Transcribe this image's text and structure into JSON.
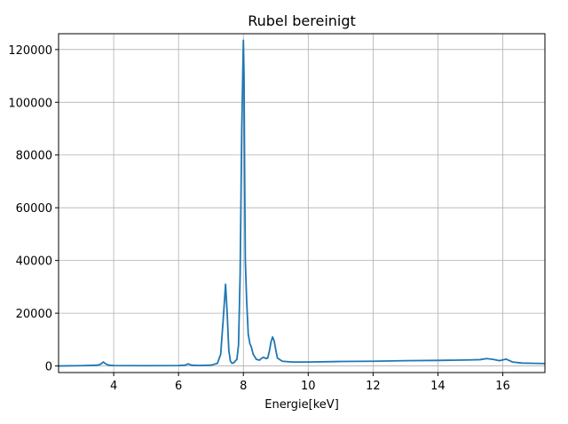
{
  "chart_data": {
    "type": "line",
    "title": "Rubel bereinigt",
    "xlabel": "Energie[keV]",
    "ylabel": "",
    "xlim": [
      2.3,
      17.3
    ],
    "ylim": [
      -2500,
      126000
    ],
    "xticks": [
      4,
      6,
      8,
      10,
      12,
      14,
      16
    ],
    "yticks": [
      0,
      20000,
      40000,
      60000,
      80000,
      100000,
      120000
    ],
    "grid": true,
    "colors": {
      "line": "#1f77b4",
      "grid": "#b0b0b0"
    },
    "series": [
      {
        "name": "",
        "x": [
          2.3,
          3.0,
          3.5,
          3.6,
          3.68,
          3.75,
          3.85,
          4.0,
          5.0,
          6.0,
          6.2,
          6.3,
          6.4,
          6.6,
          7.0,
          7.2,
          7.3,
          7.38,
          7.45,
          7.5,
          7.55,
          7.6,
          7.65,
          7.7,
          7.8,
          7.85,
          7.9,
          7.95,
          8.0,
          8.02,
          8.04,
          8.06,
          8.1,
          8.15,
          8.2,
          8.25,
          8.3,
          8.4,
          8.5,
          8.55,
          8.62,
          8.7,
          8.75,
          8.8,
          8.85,
          8.9,
          8.95,
          9.0,
          9.05,
          9.2,
          9.5,
          10.0,
          11.0,
          12.0,
          13.0,
          14.0,
          15.0,
          15.3,
          15.5,
          15.7,
          15.9,
          16.0,
          16.1,
          16.3,
          16.6,
          17.0,
          17.3
        ],
        "y": [
          0,
          100,
          300,
          700,
          1500,
          800,
          300,
          150,
          100,
          150,
          300,
          800,
          300,
          200,
          300,
          1000,
          4500,
          18000,
          31000,
          20000,
          6000,
          1800,
          1000,
          1200,
          2500,
          8000,
          35000,
          90000,
          123500,
          110000,
          70000,
          40000,
          25000,
          12000,
          8500,
          7000,
          4500,
          2500,
          2200,
          2800,
          3300,
          2800,
          3000,
          5500,
          9000,
          11000,
          9500,
          6000,
          3000,
          1800,
          1500,
          1500,
          1700,
          1800,
          2000,
          2100,
          2300,
          2400,
          2800,
          2500,
          2000,
          2300,
          2600,
          1500,
          1100,
          1000,
          900
        ]
      }
    ]
  }
}
